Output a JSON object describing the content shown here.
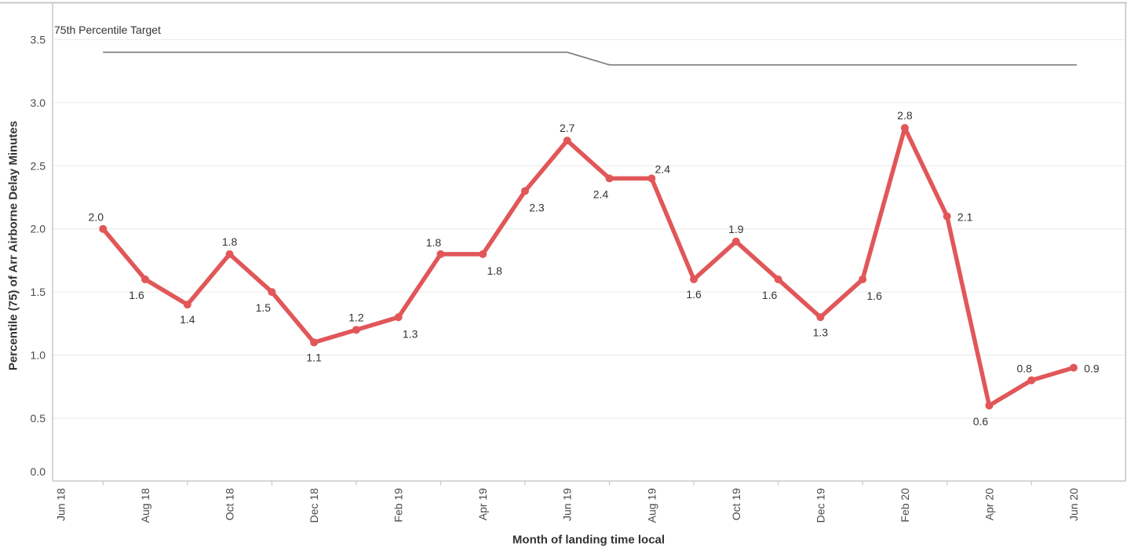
{
  "chart_data": {
    "type": "line",
    "title": "",
    "xlabel": "Month of landing time local",
    "ylabel": "Percentile (75) of Arr Airborne Delay Minutes",
    "ylim": [
      0,
      3.8
    ],
    "grid": true,
    "legend_position": "none",
    "y_ticks": [
      "0.0",
      "0.5",
      "1.0",
      "1.5",
      "2.0",
      "2.5",
      "3.0",
      "3.5"
    ],
    "x_months": [
      "Jun 18",
      "Jul 18",
      "Aug 18",
      "Sep 18",
      "Oct 18",
      "Nov 18",
      "Dec 18",
      "Jan 19",
      "Feb 19",
      "Mar 19",
      "Apr 19",
      "May 19",
      "Jun 19",
      "Jul 19",
      "Aug 19",
      "Sep 19",
      "Oct 19",
      "Nov 19",
      "Dec 19",
      "Jan 20",
      "Feb 20",
      "Mar 20",
      "Apr 20",
      "May 20",
      "Jun 20"
    ],
    "x_tick_labels": [
      "Jun 18",
      "Aug 18",
      "Oct 18",
      "Dec 18",
      "Feb 19",
      "Apr 19",
      "Jun 19",
      "Aug 19",
      "Oct 19",
      "Dec 19",
      "Feb 20",
      "Apr 20",
      "Jun 20"
    ],
    "series": [
      {
        "name": "Percentile (75) of Arr Airborne Delay Minutes",
        "color": "#e15759",
        "points": [
          {
            "month": "Jul 18",
            "value": 2.0,
            "label": "2.0",
            "label_placement": "above-left"
          },
          {
            "month": "Aug 18",
            "value": 1.6,
            "label": "1.6",
            "label_placement": "below-left"
          },
          {
            "month": "Sep 18",
            "value": 1.4,
            "label": "1.4",
            "label_placement": "below"
          },
          {
            "month": "Oct 18",
            "value": 1.8,
            "label": "1.8",
            "label_placement": "above"
          },
          {
            "month": "Nov 18",
            "value": 1.5,
            "label": "1.5",
            "label_placement": "below-left"
          },
          {
            "month": "Dec 18",
            "value": 1.1,
            "label": "1.1",
            "label_placement": "below"
          },
          {
            "month": "Jan 19",
            "value": 1.2,
            "label": "1.2",
            "label_placement": "above"
          },
          {
            "month": "Feb 19",
            "value": 1.3,
            "label": "1.3",
            "label_placement": "below-right"
          },
          {
            "month": "Mar 19",
            "value": 1.8,
            "label": "1.8",
            "label_placement": "above-left"
          },
          {
            "month": "Apr 19",
            "value": 1.8,
            "label": "1.8",
            "label_placement": "below-right"
          },
          {
            "month": "May 19",
            "value": 2.3,
            "label": "2.3",
            "label_placement": "below-right"
          },
          {
            "month": "Jun 19",
            "value": 2.7,
            "label": "2.7",
            "label_placement": "above"
          },
          {
            "month": "Jul 19",
            "value": 2.4,
            "label": "2.4",
            "label_placement": "below-left"
          },
          {
            "month": "Aug 19",
            "value": 2.4,
            "label": "2.4",
            "label_placement": "above-right"
          },
          {
            "month": "Sep 19",
            "value": 1.6,
            "label": "1.6",
            "label_placement": "below"
          },
          {
            "month": "Oct 19",
            "value": 1.9,
            "label": "1.9",
            "label_placement": "above"
          },
          {
            "month": "Nov 19",
            "value": 1.6,
            "label": "1.6",
            "label_placement": "below-left"
          },
          {
            "month": "Dec 19",
            "value": 1.3,
            "label": "1.3",
            "label_placement": "below"
          },
          {
            "month": "Jan 20",
            "value": 1.6,
            "label": "1.6",
            "label_placement": "below-right"
          },
          {
            "month": "Feb 20",
            "value": 2.8,
            "label": "2.8",
            "label_placement": "above"
          },
          {
            "month": "Mar 20",
            "value": 2.1,
            "label": "2.1",
            "label_placement": "right"
          },
          {
            "month": "Apr 20",
            "value": 0.6,
            "label": "0.6",
            "label_placement": "below-left"
          },
          {
            "month": "May 20",
            "value": 0.8,
            "label": "0.8",
            "label_placement": "above-left"
          },
          {
            "month": "Jun 20",
            "value": 0.9,
            "label": "0.9",
            "label_placement": "right"
          }
        ]
      }
    ],
    "reference_line": {
      "label": "75th Percentile Target",
      "color": "#787878",
      "segments": [
        {
          "from": "Jul 18",
          "to": "Jun 19",
          "value": 3.4
        },
        {
          "from": "Jul 19",
          "to": "Jun 20",
          "value": 3.3
        }
      ]
    }
  },
  "colors": {
    "series": "#e15759",
    "reference": "#787878",
    "grid": "#ededed",
    "axis": "#c8c8c8",
    "border": "#c3c3c3",
    "tick_text": "#4a4a4a",
    "label_text": "#333333",
    "background": "#ffffff"
  }
}
